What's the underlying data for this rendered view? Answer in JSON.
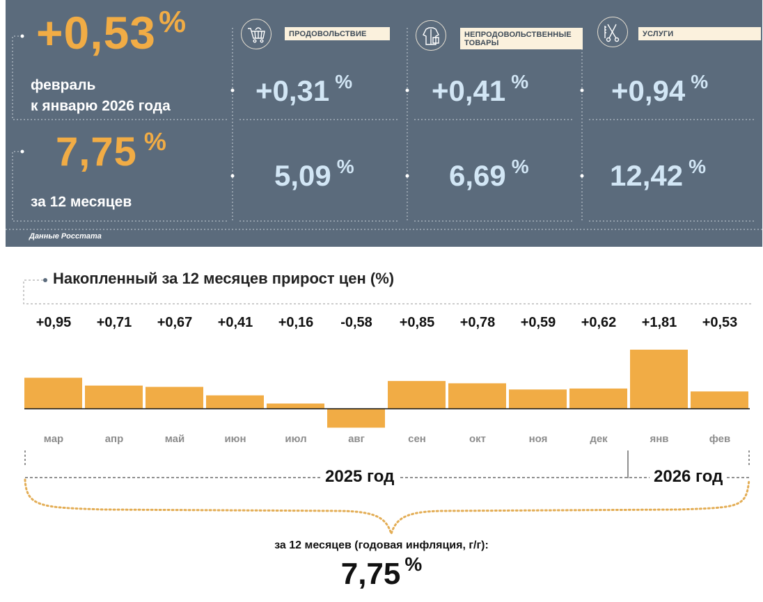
{
  "summary": {
    "monthly": {
      "value": "+0,53",
      "unit": "%",
      "label_line1": "февраль",
      "label_line2": "к январю 2026 года"
    },
    "annual": {
      "value": "7,75",
      "unit": "%",
      "label": "за 12 месяцев"
    },
    "categories": [
      {
        "name": "ПРОДОВОЛЬСТВИЕ",
        "icon": "shopping-cart-icon",
        "monthly": "+0,31",
        "annual": "5,09",
        "unit": "%"
      },
      {
        "name": "НЕПРОДОВОЛЬСТВЕННЫЕ ТОВАРЫ",
        "icon": "clothing-icon",
        "monthly": "+0,41",
        "annual": "6,69",
        "unit": "%"
      },
      {
        "name": "УСЛУГИ",
        "icon": "scissors-comb-icon",
        "monthly": "+0,94",
        "annual": "12,42",
        "unit": "%"
      }
    ],
    "source": "Данные Росстата",
    "colors": {
      "panel": "#5b6b7c",
      "accent": "#f1ac45",
      "light_value": "#d2e6f5"
    }
  },
  "chart_data": {
    "type": "bar",
    "title": "Накопленный за 12 месяцев прирост цен (%)",
    "categories": [
      "мар",
      "апр",
      "май",
      "июн",
      "июл",
      "авг",
      "сен",
      "окт",
      "ноя",
      "дек",
      "янв",
      "фев"
    ],
    "values": [
      0.95,
      0.71,
      0.67,
      0.41,
      0.16,
      -0.58,
      0.85,
      0.78,
      0.59,
      0.62,
      1.81,
      0.53
    ],
    "value_labels": [
      "+0,95",
      "+0,71",
      "+0,67",
      "+0,41",
      "+0,16",
      "-0,58",
      "+0,85",
      "+0,78",
      "+0,59",
      "+0,62",
      "+1,81",
      "+0,53"
    ],
    "years": [
      {
        "label": "2025 год",
        "from": "мар",
        "to": "дек"
      },
      {
        "label": "2026 год",
        "from": "янв",
        "to": "фев"
      }
    ],
    "ylim": [
      -0.58,
      1.81
    ],
    "bar_color": "#f1ac45"
  },
  "annual_summary": {
    "label": "за 12 месяцев (годовая инфляция, г/г):",
    "value": "7,75",
    "unit": "%"
  }
}
